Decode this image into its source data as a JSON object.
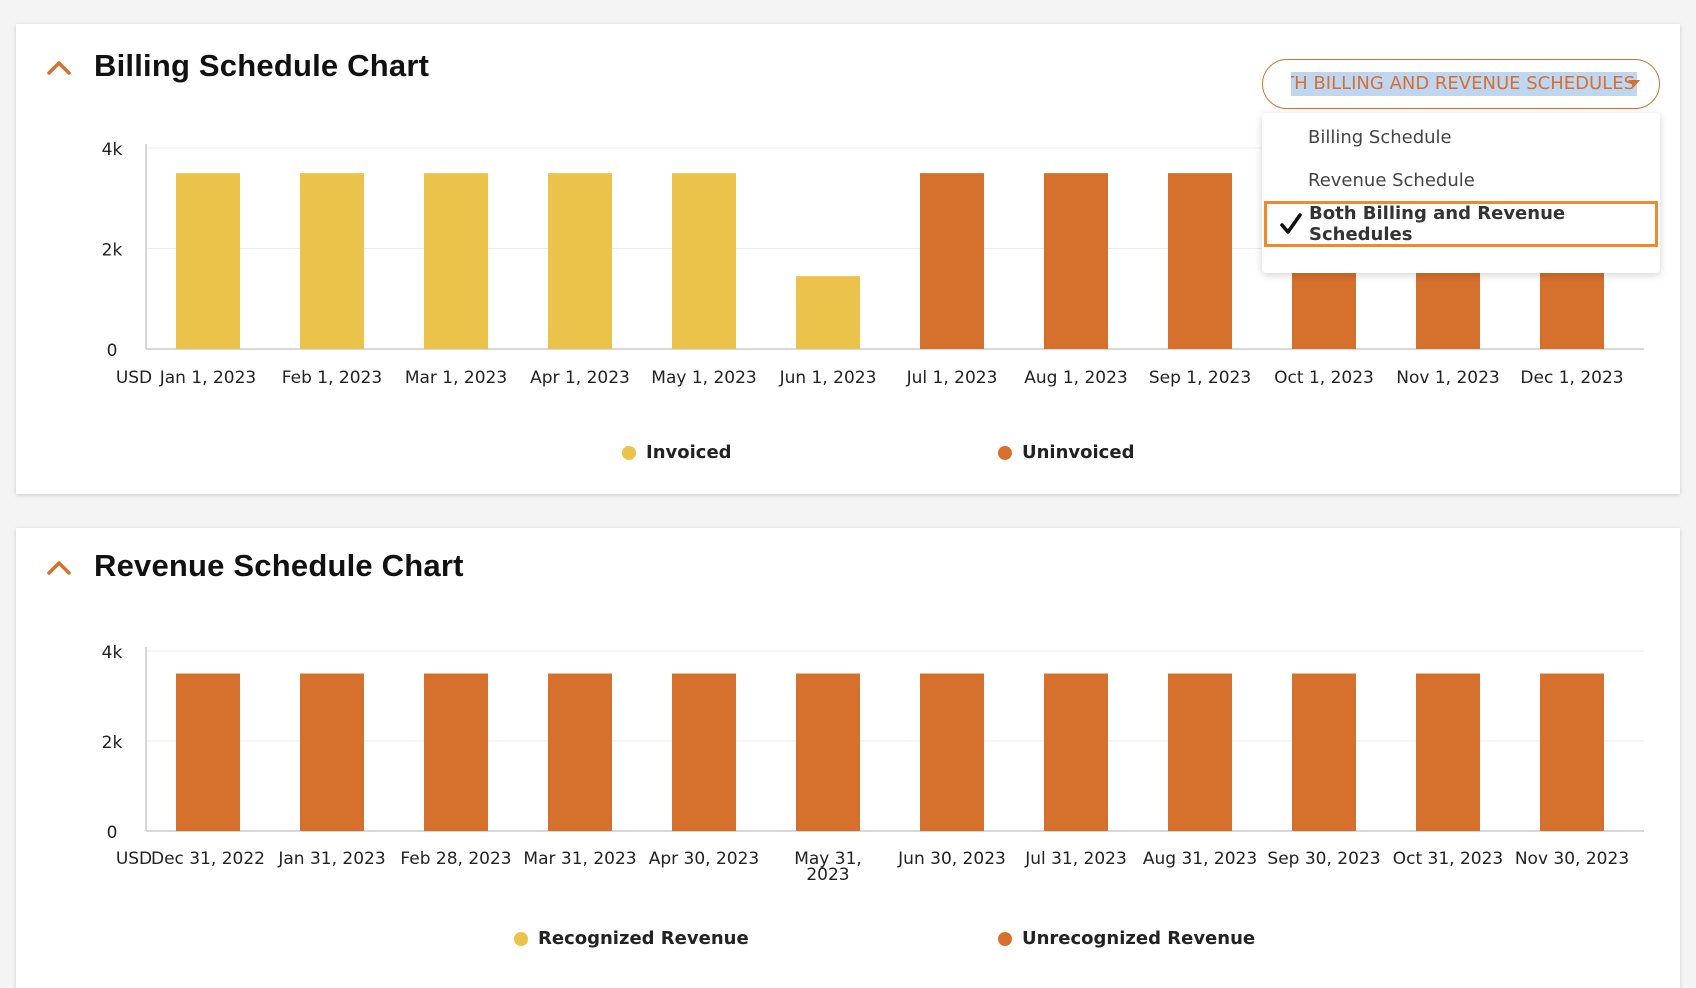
{
  "colors": {
    "accent": "#d6702d",
    "invoiced": "#ecc34a",
    "uninvoiced": "#d6702d",
    "grid": "#ececec",
    "axis": "#cccccc"
  },
  "billing_card": {
    "title": "Billing Schedule Chart",
    "collapse_icon": "chevron-up-icon",
    "schedule_select": {
      "value": "BOTH BILLING AND REVENUE SCHEDULES",
      "caret_icon": "caret-down-icon",
      "options": [
        {
          "label": "Billing Schedule",
          "selected": false
        },
        {
          "label": "Revenue Schedule",
          "selected": false
        },
        {
          "label": "Both Billing and Revenue Schedules",
          "selected": true
        }
      ],
      "check_icon": "checkmark-icon"
    },
    "legend": [
      {
        "label": "Invoiced",
        "color": "#ecc34a"
      },
      {
        "label": "Uninvoiced",
        "color": "#d6702d"
      }
    ]
  },
  "revenue_card": {
    "title": "Revenue Schedule Chart",
    "collapse_icon": "chevron-up-icon",
    "legend": [
      {
        "label": "Recognized Revenue",
        "color": "#ecc34a"
      },
      {
        "label": "Unrecognized Revenue",
        "color": "#d6702d"
      }
    ]
  },
  "chart_data": [
    {
      "type": "bar",
      "title": "Billing Schedule Chart",
      "y_unit_label": "USD",
      "ylim": [
        0,
        4000
      ],
      "y_ticks": [
        "0",
        "2k",
        "4k"
      ],
      "categories": [
        "Jan 1, 2023",
        "Feb 1, 2023",
        "Mar 1, 2023",
        "Apr 1, 2023",
        "May 1, 2023",
        "Jun 1, 2023",
        "Jul 1, 2023",
        "Aug 1, 2023",
        "Sep 1, 2023",
        "Oct 1, 2023",
        "Nov 1, 2023",
        "Dec 1, 2023"
      ],
      "series": [
        {
          "name": "Invoiced",
          "color": "#ecc34a",
          "values": [
            3500,
            3500,
            3500,
            3500,
            3500,
            1450,
            0,
            0,
            0,
            0,
            0,
            0
          ]
        },
        {
          "name": "Uninvoiced",
          "color": "#d6702d",
          "values": [
            0,
            0,
            0,
            0,
            0,
            0,
            3500,
            3500,
            3500,
            3500,
            3500,
            3500
          ]
        }
      ],
      "grid": true,
      "legend_position": "bottom"
    },
    {
      "type": "bar",
      "title": "Revenue Schedule Chart",
      "y_unit_label": "USD",
      "ylim": [
        0,
        4000
      ],
      "y_ticks": [
        "0",
        "2k",
        "4k"
      ],
      "categories": [
        "Dec 31, 2022",
        "Jan 31, 2023",
        "Feb 28, 2023",
        "Mar 31, 2023",
        "Apr 30, 2023",
        "May 31, 2023",
        "Jun 30, 2023",
        "Jul 31, 2023",
        "Aug 31, 2023",
        "Sep 30, 2023",
        "Oct 31, 2023",
        "Nov 30, 2023"
      ],
      "series": [
        {
          "name": "Recognized Revenue",
          "color": "#ecc34a",
          "values": [
            0,
            0,
            0,
            0,
            0,
            0,
            0,
            0,
            0,
            0,
            0,
            0
          ]
        },
        {
          "name": "Unrecognized Revenue",
          "color": "#d6702d",
          "values": [
            3500,
            3500,
            3500,
            3500,
            3500,
            3500,
            3500,
            3500,
            3500,
            3500,
            3500,
            3500
          ]
        }
      ],
      "grid": true,
      "legend_position": "bottom"
    }
  ]
}
